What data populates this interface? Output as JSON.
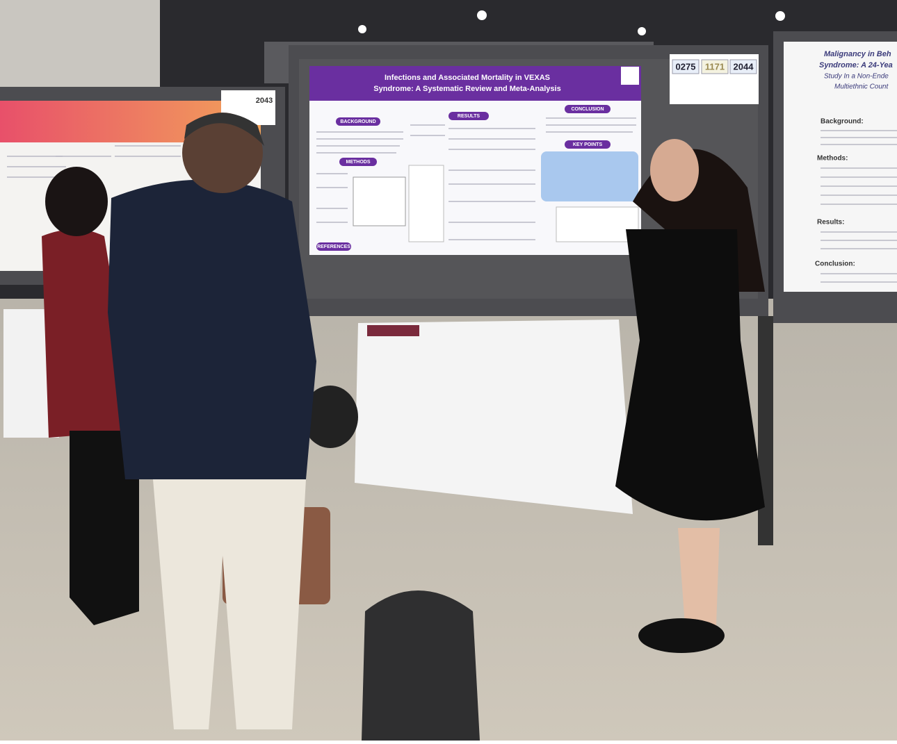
{
  "main_poster": {
    "title_lines": [
      "Infections and Associated Mortality in VEXAS",
      "Syndrome: A Systematic Review and Meta-Analysis"
    ],
    "sections": [
      "BACKGROUND",
      "METHODS",
      "RESULTS",
      "CONCLUSION",
      "KEY POINTS",
      "REFERENCES"
    ]
  },
  "board_numbers": [
    "0275",
    "1171",
    "2044"
  ],
  "left_poster": {
    "board_number": "2043"
  },
  "right_poster": {
    "title_lines": [
      "Malignancy in Beh",
      "Syndrome: A 24-Yea",
      "Study In a Non-Ende",
      "Multiethnic Count"
    ],
    "headings": [
      "Background:",
      "Methods:",
      "Results:",
      "Conclusion:"
    ]
  }
}
